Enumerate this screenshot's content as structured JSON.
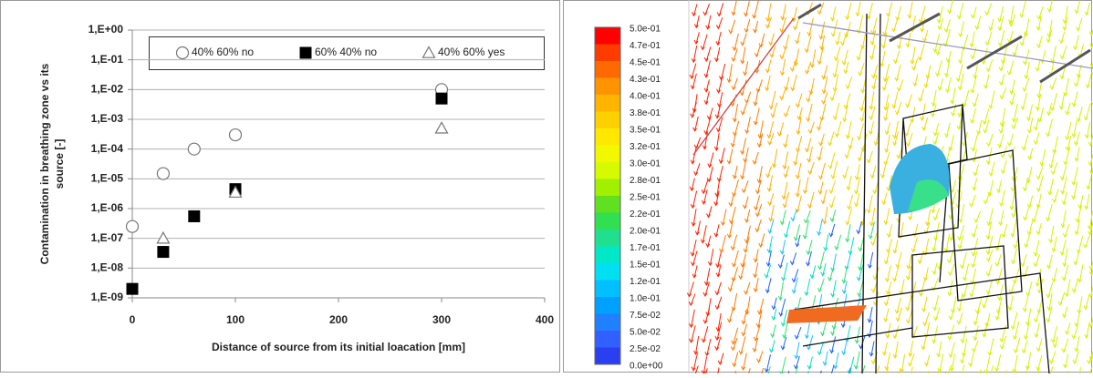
{
  "chart_data": {
    "type": "scatter",
    "xlabel": "Distance of source from its initial loacation [mm]",
    "ylabel": [
      "Contamination in breathing zone vs its",
      "source [-]"
    ],
    "xlim": [
      0,
      400
    ],
    "xticks": [
      0,
      100,
      200,
      300,
      400
    ],
    "ylim": [
      1e-09,
      1
    ],
    "log_y": true,
    "grid": true,
    "yticks": [
      {
        "value": 1,
        "label": "1,E+00"
      },
      {
        "value": 0.1,
        "label": "1,E-01"
      },
      {
        "value": 0.01,
        "label": "1,E-02"
      },
      {
        "value": 0.001,
        "label": "1,E-03"
      },
      {
        "value": 0.0001,
        "label": "1,E-04"
      },
      {
        "value": 1e-05,
        "label": "1,E-05"
      },
      {
        "value": 1e-06,
        "label": "1,E-06"
      },
      {
        "value": 1e-07,
        "label": "1,E-07"
      },
      {
        "value": 1e-08,
        "label": "1,E-08"
      },
      {
        "value": 1e-09,
        "label": "1,E-09"
      }
    ],
    "series": [
      {
        "name": "40% 60% no",
        "marker": "circle",
        "color": "#777777",
        "x": [
          0,
          30,
          60,
          100,
          300
        ],
        "values": [
          2.5e-07,
          1.5e-05,
          0.0001,
          0.0003,
          0.01
        ]
      },
      {
        "name": "60% 40% no",
        "marker": "square",
        "color": "#000000",
        "x": [
          0,
          30,
          60,
          100,
          300
        ],
        "values": [
          2e-09,
          3.5e-08,
          5.5e-07,
          4.5e-06,
          0.005
        ]
      },
      {
        "name": "40% 60% yes",
        "marker": "triangle",
        "color": "#777777",
        "x": [
          30,
          100,
          300
        ],
        "values": [
          1e-07,
          3.5e-06,
          0.0005
        ]
      }
    ]
  },
  "flow_image": {
    "colorbar_labels": [
      "5.0e-01",
      "4.7e-01",
      "4.5e-01",
      "4.3e-01",
      "4.0e-01",
      "3.8e-01",
      "3.5e-01",
      "3.2e-01",
      "3.0e-01",
      "2.8e-01",
      "2.5e-01",
      "2.2e-01",
      "2.0e-01",
      "1.7e-01",
      "1.5e-01",
      "1.2e-01",
      "1.0e-01",
      "7.5e-02",
      "5.0e-02",
      "2.5e-02",
      "0.0e+00"
    ]
  }
}
